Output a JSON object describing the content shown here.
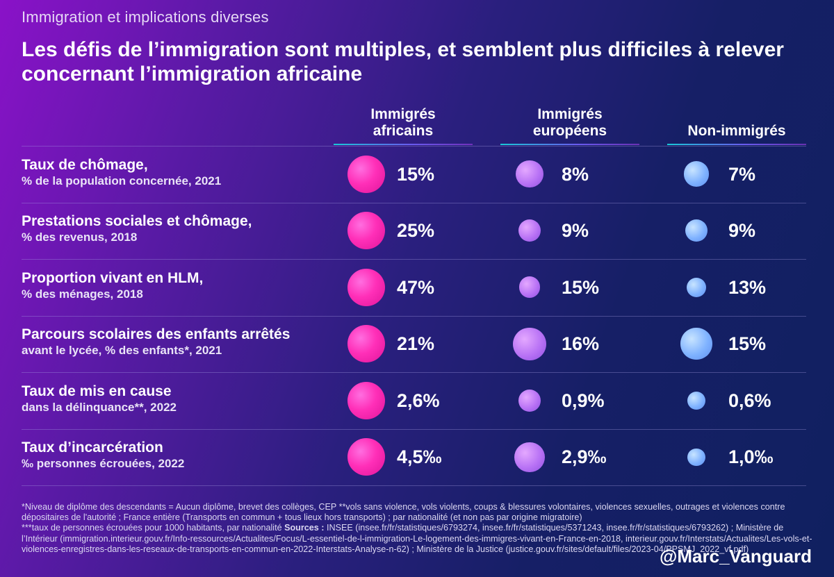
{
  "overtitle": "Immigration et implications diverses",
  "headline": "Les défis de l’immigration sont multiples, et semblent plus difficiles à relever concernant l’immigration africaine",
  "columns": [
    {
      "line1": "Immigrés",
      "line2": "africains"
    },
    {
      "line1": "Immigrés",
      "line2": "européens"
    },
    {
      "line1": "",
      "line2": "Non-immigrés"
    }
  ],
  "chart_data": {
    "type": "table",
    "series": [
      {
        "name": "Immigrés africains",
        "color": "#ff2fb8"
      },
      {
        "name": "Immigrés européens",
        "color": "#b872f5"
      },
      {
        "name": "Non-immigrés",
        "color": "#7fb2ff"
      }
    ],
    "rows": [
      {
        "label": "Taux de chômage,",
        "sublabel": "% de la population concernée, 2021",
        "values": [
          15,
          8,
          7
        ],
        "display": [
          "15%",
          "8%",
          "7%"
        ]
      },
      {
        "label": "Prestations sociales et chômage,",
        "sublabel": "% des revenus, 2018",
        "values": [
          25,
          9,
          9
        ],
        "display": [
          "25%",
          "9%",
          "9%"
        ]
      },
      {
        "label": "Proportion vivant en HLM,",
        "sublabel": "% des ménages, 2018",
        "values": [
          47,
          15,
          13
        ],
        "display": [
          "47%",
          "15%",
          "13%"
        ]
      },
      {
        "label": "Parcours scolaires des enfants arrêtés",
        "sublabel": "avant le lycée, % des enfants*, 2021",
        "values": [
          21,
          16,
          15
        ],
        "display": [
          "21%",
          "16%",
          "15%"
        ]
      },
      {
        "label": "Taux de mis en cause",
        "sublabel": "dans la délinquance**, 2022",
        "values": [
          2.6,
          0.9,
          0.6
        ],
        "display": [
          "2,6%",
          "0,9%",
          "0,6%"
        ]
      },
      {
        "label": "Taux d’incarcération",
        "sublabel": "‰ personnes écrouées, 2022",
        "values": [
          4.5,
          2.9,
          1.0
        ],
        "display": [
          "4,5‰",
          "2,9‰",
          "1,0‰"
        ]
      }
    ]
  },
  "footnote": {
    "line1": "*Niveau de diplôme des descendants = Aucun diplôme, brevet des collèges, CEP     **vols sans violence, vols violents, coups & blessures volontaires, violences sexuelles, outrages et violences contre dépositaires de l'autorité ; France entière (Transports en commun + tous lieux hors transports) ; par nationalité (et non pas par origine migratoire)",
    "line2": "***taux de personnes écrouées pour 1000 habitants, par nationalité      ",
    "sources_label": "Sources :",
    "sources_text": " INSEE (insee.fr/fr/statistiques/6793274, insee.fr/fr/statistiques/5371243, insee.fr/fr/statistiques/6793262) ; Ministère de l’Intérieur (immigration.interieur.gouv.fr/Info-ressources/Actualites/Focus/L-essentiel-de-l-immigration-Le-logement-des-immigres-vivant-en-France-en-2018, interieur.gouv.fr/Interstats/Actualites/Les-vols-et-violences-enregistres-dans-les-reseaux-de-transports-en-commun-en-2022-Interstats-Analyse-n-62) ; Ministère de la Justice (justice.gouv.fr/sites/default/files/2023-04/PPSMJ_2022_vf.pdf)"
  },
  "handle": "@Marc_Vanguard"
}
